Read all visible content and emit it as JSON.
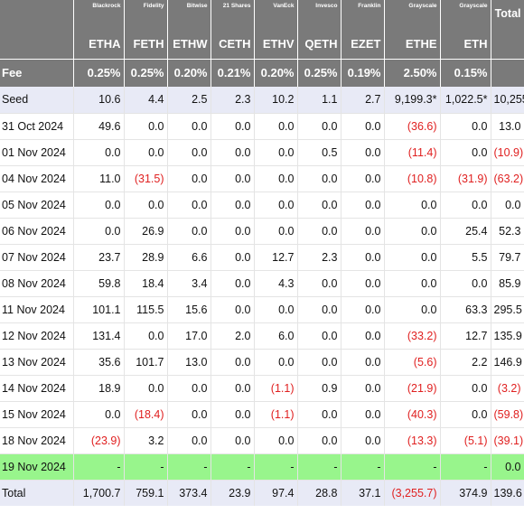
{
  "columns": [
    {
      "issuer": "Blackrock",
      "ticker": "ETHA",
      "fee": "0.25%"
    },
    {
      "issuer": "Fidelity",
      "ticker": "FETH",
      "fee": "0.25%"
    },
    {
      "issuer": "Bitwise",
      "ticker": "ETHW",
      "fee": "0.20%"
    },
    {
      "issuer": "21 Shares",
      "ticker": "CETH",
      "fee": "0.21%"
    },
    {
      "issuer": "VanEck",
      "ticker": "ETHV",
      "fee": "0.20%"
    },
    {
      "issuer": "Invesco",
      "ticker": "QETH",
      "fee": "0.25%"
    },
    {
      "issuer": "Franklin",
      "ticker": "EZET",
      "fee": "0.19%"
    },
    {
      "issuer": "Grayscale",
      "ticker": "ETHE",
      "fee": "2.50%"
    },
    {
      "issuer": "Grayscale",
      "ticker": "ETH",
      "fee": "0.15%"
    }
  ],
  "total_header": "Total",
  "fee_label": "Fee",
  "rows": [
    {
      "label": "Seed",
      "values": [
        "10.6",
        "4.4",
        "2.5",
        "2.3",
        "10.2",
        "1.1",
        "2.7",
        "9,199.3*",
        "1,022.5*",
        "10,255"
      ],
      "style": "seed"
    },
    {
      "label": "31 Oct 2024",
      "values": [
        "49.6",
        "0.0",
        "0.0",
        "0.0",
        "0.0",
        "0.0",
        "0.0",
        "(36.6)",
        "0.0",
        "13.0"
      ]
    },
    {
      "label": "01 Nov 2024",
      "values": [
        "0.0",
        "0.0",
        "0.0",
        "0.0",
        "0.0",
        "0.5",
        "0.0",
        "(11.4)",
        "0.0",
        "(10.9)"
      ]
    },
    {
      "label": "04 Nov 2024",
      "values": [
        "11.0",
        "(31.5)",
        "0.0",
        "0.0",
        "0.0",
        "0.0",
        "0.0",
        "(10.8)",
        "(31.9)",
        "(63.2)"
      ]
    },
    {
      "label": "05 Nov 2024",
      "values": [
        "0.0",
        "0.0",
        "0.0",
        "0.0",
        "0.0",
        "0.0",
        "0.0",
        "0.0",
        "0.0",
        "0.0"
      ]
    },
    {
      "label": "06 Nov 2024",
      "values": [
        "0.0",
        "26.9",
        "0.0",
        "0.0",
        "0.0",
        "0.0",
        "0.0",
        "0.0",
        "25.4",
        "52.3"
      ]
    },
    {
      "label": "07 Nov 2024",
      "values": [
        "23.7",
        "28.9",
        "6.6",
        "0.0",
        "12.7",
        "2.3",
        "0.0",
        "0.0",
        "5.5",
        "79.7"
      ]
    },
    {
      "label": "08 Nov 2024",
      "values": [
        "59.8",
        "18.4",
        "3.4",
        "0.0",
        "4.3",
        "0.0",
        "0.0",
        "0.0",
        "0.0",
        "85.9"
      ]
    },
    {
      "label": "11 Nov 2024",
      "values": [
        "101.1",
        "115.5",
        "15.6",
        "0.0",
        "0.0",
        "0.0",
        "0.0",
        "0.0",
        "63.3",
        "295.5"
      ]
    },
    {
      "label": "12 Nov 2024",
      "values": [
        "131.4",
        "0.0",
        "17.0",
        "2.0",
        "6.0",
        "0.0",
        "0.0",
        "(33.2)",
        "12.7",
        "135.9"
      ]
    },
    {
      "label": "13 Nov 2024",
      "values": [
        "35.6",
        "101.7",
        "13.0",
        "0.0",
        "0.0",
        "0.0",
        "0.0",
        "(5.6)",
        "2.2",
        "146.9"
      ]
    },
    {
      "label": "14 Nov 2024",
      "values": [
        "18.9",
        "0.0",
        "0.0",
        "0.0",
        "(1.1)",
        "0.9",
        "0.0",
        "(21.9)",
        "0.0",
        "(3.2)"
      ]
    },
    {
      "label": "15 Nov 2024",
      "values": [
        "0.0",
        "(18.4)",
        "0.0",
        "0.0",
        "(1.1)",
        "0.0",
        "0.0",
        "(40.3)",
        "0.0",
        "(59.8)"
      ]
    },
    {
      "label": "18 Nov 2024",
      "values": [
        "(23.9)",
        "3.2",
        "0.0",
        "0.0",
        "0.0",
        "0.0",
        "0.0",
        "(13.3)",
        "(5.1)",
        "(39.1)"
      ]
    },
    {
      "label": "19 Nov 2024",
      "values": [
        "-",
        "-",
        "-",
        "-",
        "-",
        "-",
        "-",
        "-",
        "-",
        "0.0"
      ],
      "style": "hl"
    },
    {
      "label": "Total",
      "values": [
        "1,700.7",
        "759.1",
        "373.4",
        "23.9",
        "97.4",
        "28.8",
        "37.1",
        "(3,255.7)",
        "374.9",
        "139.6"
      ],
      "style": "total"
    }
  ]
}
